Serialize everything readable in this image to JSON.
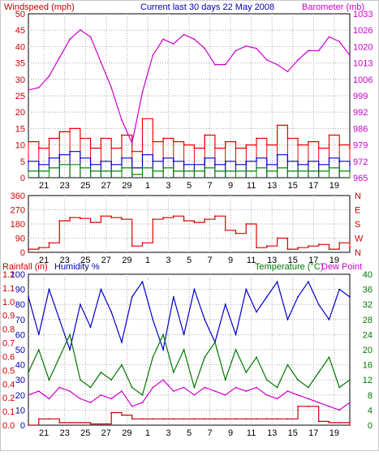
{
  "header": {
    "left": "Windspeed (mph)",
    "center": "Current last 30 days 22 May 2008",
    "right": "Barometer (mb)"
  },
  "colors": {
    "wind_avg": "#0000cc",
    "wind_gust": "#ee0000",
    "wind_green": "#008800",
    "barometer": "#cc00cc",
    "direction": "#dd0000",
    "humidity": "#0000cc",
    "temperature": "#007700",
    "dewpoint": "#cc00cc",
    "rain": "#cc0000",
    "grid": "#aaaaaa",
    "axis_text_pink": "#cc00cc",
    "axis_text_red": "#cc0000",
    "axis_text_blue": "#0000aa",
    "axis_text_green": "#007700"
  },
  "chart_data": [
    {
      "type": "line",
      "title": "Current last 30 days 22 May 2008",
      "ylabel": "Windspeed (mph)",
      "y2label": "Barometer (mb)",
      "ylim": [
        0,
        50
      ],
      "y2lim": [
        965,
        1036
      ],
      "yticks": [
        "0",
        "5",
        "10",
        "15",
        "20",
        "25",
        "30",
        "35",
        "40",
        "45",
        "50"
      ],
      "y2ticks": [
        "965",
        "972",
        "979",
        "986",
        "992",
        "999",
        "1006",
        "1013",
        "1020",
        "1026",
        "1033"
      ],
      "xticks": [
        "21",
        "23",
        "25",
        "27",
        "29",
        "1",
        "3",
        "5",
        "7",
        "9",
        "11",
        "13",
        "15",
        "17",
        "19"
      ],
      "grid": true,
      "barometer": {
        "name": "Barometer (mb)",
        "x": [
          0,
          1,
          2,
          3,
          4,
          5,
          6,
          7,
          8,
          9,
          10,
          11,
          12,
          13,
          14,
          15,
          16,
          17,
          18,
          19,
          20,
          21,
          22,
          23,
          24,
          25,
          26,
          27,
          28,
          29,
          30,
          31
        ],
        "values": [
          1003,
          1004,
          1009,
          1017,
          1025,
          1029,
          1026,
          1015,
          1004,
          990,
          980,
          1002,
          1018,
          1025,
          1023,
          1027,
          1025,
          1021,
          1014,
          1014,
          1020,
          1022,
          1021,
          1016,
          1014,
          1011,
          1016,
          1020,
          1020,
          1026,
          1024,
          1018
        ]
      },
      "series": [
        {
          "name": "gust",
          "x": [
            0,
            1,
            2,
            3,
            4,
            5,
            6,
            7,
            8,
            9,
            10,
            11,
            12,
            13,
            14,
            15,
            16,
            17,
            18,
            19,
            20,
            21,
            22,
            23,
            24,
            25,
            26,
            27,
            28,
            29,
            30,
            31
          ],
          "values": [
            11,
            9,
            12,
            14,
            15,
            12,
            9,
            12,
            9,
            13,
            8,
            18,
            11,
            12,
            11,
            10,
            9,
            13,
            9,
            11,
            9,
            10,
            12,
            10,
            16,
            12,
            10,
            11,
            9,
            13,
            10,
            9
          ]
        },
        {
          "name": "average",
          "x": [
            0,
            1,
            2,
            3,
            4,
            5,
            6,
            7,
            8,
            9,
            10,
            11,
            12,
            13,
            14,
            15,
            16,
            17,
            18,
            19,
            20,
            21,
            22,
            23,
            24,
            25,
            26,
            27,
            28,
            29,
            30,
            31
          ],
          "values": [
            5,
            4,
            6,
            7,
            8,
            6,
            4,
            5,
            4,
            6,
            3,
            7,
            5,
            6,
            5,
            4,
            4,
            6,
            4,
            5,
            4,
            5,
            6,
            4,
            7,
            5,
            4,
            5,
            4,
            6,
            5,
            4
          ]
        },
        {
          "name": "low",
          "x": [
            0,
            1,
            2,
            3,
            4,
            5,
            6,
            7,
            8,
            9,
            10,
            11,
            12,
            13,
            14,
            15,
            16,
            17,
            18,
            19,
            20,
            21,
            22,
            23,
            24,
            25,
            26,
            27,
            28,
            29,
            30,
            31
          ],
          "values": [
            2,
            2,
            3,
            4,
            4,
            3,
            2,
            2,
            2,
            3,
            1,
            3,
            2,
            3,
            2,
            2,
            2,
            3,
            2,
            2,
            2,
            2,
            3,
            2,
            3,
            2,
            2,
            2,
            2,
            3,
            2,
            2
          ]
        }
      ]
    },
    {
      "type": "line",
      "ylim": [
        0,
        360
      ],
      "yticks": [
        "0",
        "90",
        "180",
        "270",
        "360"
      ],
      "compass": [
        "N",
        "W",
        "S",
        "E",
        "N"
      ],
      "xticks": [
        "21",
        "23",
        "25",
        "27",
        "29",
        "1",
        "3",
        "5",
        "7",
        "9",
        "11",
        "13",
        "15",
        "17",
        "19"
      ],
      "grid": true,
      "series": [
        {
          "name": "direction",
          "x": [
            0,
            1,
            2,
            3,
            4,
            5,
            6,
            7,
            8,
            9,
            10,
            11,
            12,
            13,
            14,
            15,
            16,
            17,
            18,
            19,
            20,
            21,
            22,
            23,
            24,
            25,
            26,
            27,
            28,
            29,
            30,
            31
          ],
          "values": [
            20,
            30,
            60,
            200,
            220,
            215,
            190,
            230,
            220,
            210,
            40,
            60,
            210,
            220,
            230,
            200,
            190,
            210,
            230,
            140,
            120,
            180,
            30,
            40,
            90,
            20,
            30,
            40,
            50,
            20,
            60,
            30
          ]
        }
      ]
    },
    {
      "type": "line",
      "ylabel": "Rainfall (in)",
      "ylabel2": "Humidity %",
      "y2label": "Temperature (°C)",
      "y2label_b": "Dew Point",
      "ylim": [
        0,
        100
      ],
      "y_rain_lim": [
        0,
        1.2
      ],
      "y2lim": [
        0,
        40
      ],
      "yticks_humidity": [
        "0",
        "10",
        "20",
        "30",
        "40",
        "50",
        "60",
        "70",
        "80",
        "90",
        "100"
      ],
      "yticks_rain": [
        "0.0",
        "0.1",
        "0.2",
        "0.4",
        "0.5",
        "0.6",
        "0.7",
        "0.8",
        "0.9",
        "1.0",
        "1.1",
        "1.2"
      ],
      "y2ticks": [
        "0",
        "4",
        "8",
        "12",
        "16",
        "20",
        "24",
        "28",
        "32",
        "36",
        "40"
      ],
      "xticks": [
        "21",
        "23",
        "25",
        "27",
        "29",
        "1",
        "3",
        "5",
        "7",
        "9",
        "11",
        "13",
        "15",
        "17",
        "19"
      ],
      "grid": true,
      "series": [
        {
          "name": "Humidity %",
          "x": [
            0,
            1,
            2,
            3,
            4,
            5,
            6,
            7,
            8,
            9,
            10,
            11,
            12,
            13,
            14,
            15,
            16,
            17,
            18,
            19,
            20,
            21,
            22,
            23,
            24,
            25,
            26,
            27,
            28,
            29,
            30,
            31
          ],
          "values": [
            85,
            60,
            90,
            70,
            50,
            80,
            65,
            90,
            75,
            55,
            85,
            95,
            70,
            50,
            85,
            60,
            90,
            70,
            55,
            80,
            60,
            90,
            75,
            85,
            95,
            70,
            85,
            95,
            80,
            70,
            90,
            85
          ]
        },
        {
          "name": "Temperature (°C)",
          "x": [
            0,
            1,
            2,
            3,
            4,
            5,
            6,
            7,
            8,
            9,
            10,
            11,
            12,
            13,
            14,
            15,
            16,
            17,
            18,
            19,
            20,
            21,
            22,
            23,
            24,
            25,
            26,
            27,
            28,
            29,
            30,
            31
          ],
          "values": [
            14,
            20,
            12,
            18,
            24,
            12,
            10,
            14,
            12,
            16,
            10,
            8,
            18,
            24,
            14,
            20,
            10,
            18,
            22,
            12,
            20,
            14,
            18,
            12,
            10,
            16,
            12,
            10,
            14,
            18,
            10,
            12
          ]
        },
        {
          "name": "Dew Point",
          "x": [
            0,
            1,
            2,
            3,
            4,
            5,
            6,
            7,
            8,
            9,
            10,
            11,
            12,
            13,
            14,
            15,
            16,
            17,
            18,
            19,
            20,
            21,
            22,
            23,
            24,
            25,
            26,
            27,
            28,
            29,
            30,
            31
          ],
          "values": [
            8,
            9,
            7,
            10,
            9,
            7,
            6,
            8,
            7,
            9,
            5,
            6,
            10,
            12,
            9,
            10,
            8,
            10,
            9,
            8,
            10,
            9,
            10,
            8,
            7,
            9,
            8,
            7,
            6,
            5,
            4,
            6
          ]
        },
        {
          "name": "Rainfall (in)",
          "x": [
            0,
            1,
            2,
            3,
            4,
            5,
            6,
            7,
            8,
            9,
            10,
            11,
            12,
            13,
            14,
            15,
            16,
            17,
            18,
            19,
            20,
            21,
            22,
            23,
            24,
            25,
            26,
            27,
            28,
            29,
            30,
            31
          ],
          "values": [
            0.0,
            0.05,
            0.05,
            0.02,
            0.02,
            0.02,
            0.01,
            0.01,
            0.1,
            0.08,
            0.05,
            0.05,
            0.05,
            0.05,
            0.05,
            0.05,
            0.05,
            0.05,
            0.05,
            0.05,
            0.05,
            0.05,
            0.05,
            0.05,
            0.05,
            0.05,
            0.15,
            0.15,
            0.03,
            0.02,
            0.02,
            0.0
          ]
        }
      ]
    }
  ]
}
